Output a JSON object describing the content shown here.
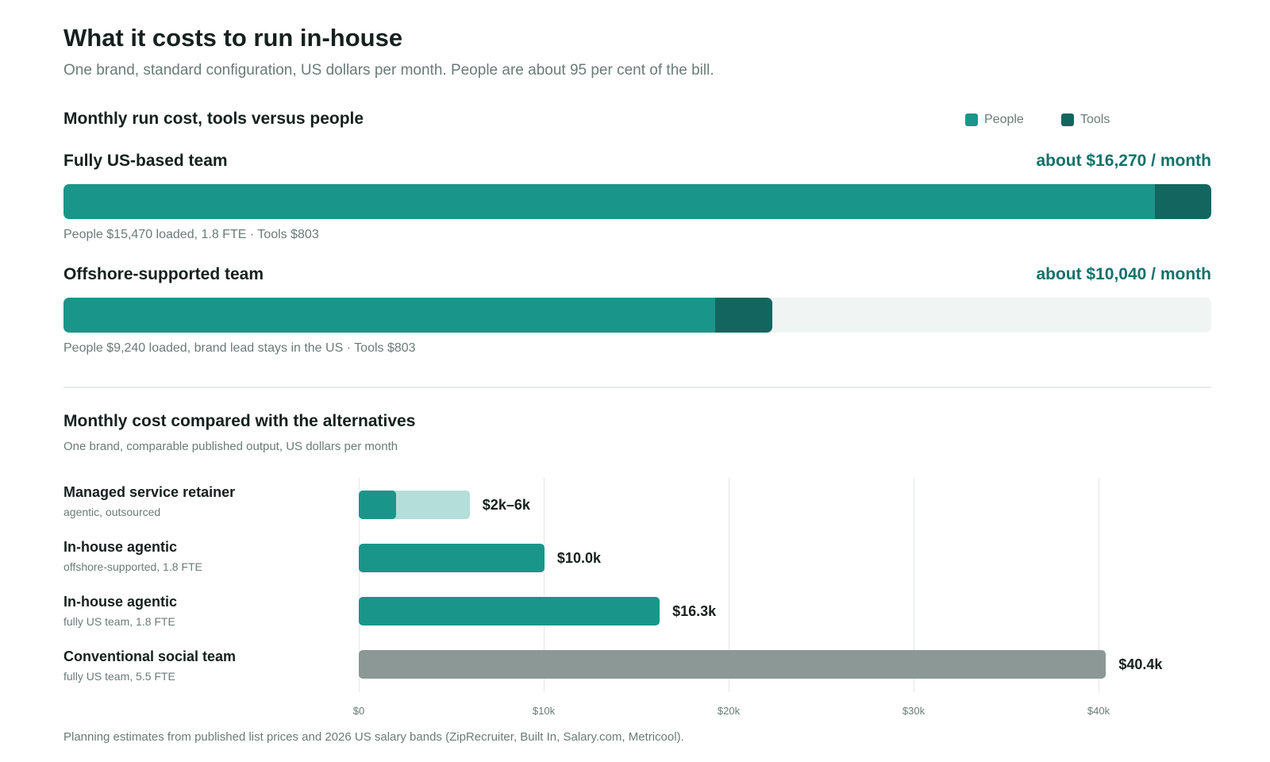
{
  "header": {
    "title": "What it costs to run in-house",
    "subtitle": "One brand, standard configuration, US dollars per month. People are about 95 per cent of the bill."
  },
  "colors": {
    "people": "#1a958a",
    "tools": "#13665f",
    "range": "#b4ded9",
    "conventional": "#8c9896",
    "accent_text": "#13716a"
  },
  "section1": {
    "title": "Monthly run cost, tools versus people",
    "legend": [
      {
        "label": "People",
        "color": "#1a958a"
      },
      {
        "label": "Tools",
        "color": "#13665f"
      }
    ],
    "rows": [
      {
        "label": "Fully US-based team",
        "total_label": "about $16,270 / month",
        "note": "People $15,470 loaded, 1.8 FTE · Tools $803"
      },
      {
        "label": "Offshore-supported team",
        "total_label": "about $10,040 / month",
        "note": "People $9,240 loaded, brand lead stays in the US · Tools $803"
      }
    ]
  },
  "section2": {
    "title": "Monthly cost compared with the alternatives",
    "subtitle": "One brand, comparable published output, US dollars per month",
    "categories": [
      {
        "name": "Managed service retainer",
        "desc": "agentic, outsourced",
        "value_label": "$2k–6k"
      },
      {
        "name": "In-house agentic",
        "desc": "offshore-supported, 1.8 FTE",
        "value_label": "$10.0k"
      },
      {
        "name": "In-house agentic",
        "desc": "fully US team, 1.8 FTE",
        "value_label": "$16.3k"
      },
      {
        "name": "Conventional social team",
        "desc": "fully US team, 5.5 FTE",
        "value_label": "$40.4k"
      }
    ],
    "ticks": [
      "$0",
      "$10k",
      "$20k",
      "$30k",
      "$40k"
    ]
  },
  "footnote": "Planning estimates from published list prices and 2026 US salary bands (ZipRecruiter, Built In, Salary.com, Metricool).",
  "chart_data": [
    {
      "type": "bar",
      "orientation": "horizontal",
      "stacked": true,
      "title": "Monthly run cost, tools versus people",
      "categories": [
        "Fully US-based team",
        "Offshore-supported team"
      ],
      "series": [
        {
          "name": "People",
          "values": [
            15470,
            9240
          ]
        },
        {
          "name": "Tools",
          "values": [
            803,
            803
          ]
        }
      ],
      "totals": [
        16270,
        10040
      ],
      "xlim": [
        0,
        16270
      ],
      "legend": "top-right"
    },
    {
      "type": "bar",
      "orientation": "horizontal",
      "title": "Monthly cost compared with the alternatives",
      "categories": [
        "Managed service retainer",
        "In-house agentic",
        "In-house agentic",
        "Conventional social team"
      ],
      "values": [
        6000,
        10040,
        16270,
        40400
      ],
      "ranges": [
        [
          2000,
          6000
        ],
        null,
        null,
        null
      ],
      "xlim": [
        0,
        40400
      ],
      "xticks": [
        0,
        10000,
        20000,
        30000,
        40000
      ],
      "grid": true
    }
  ]
}
